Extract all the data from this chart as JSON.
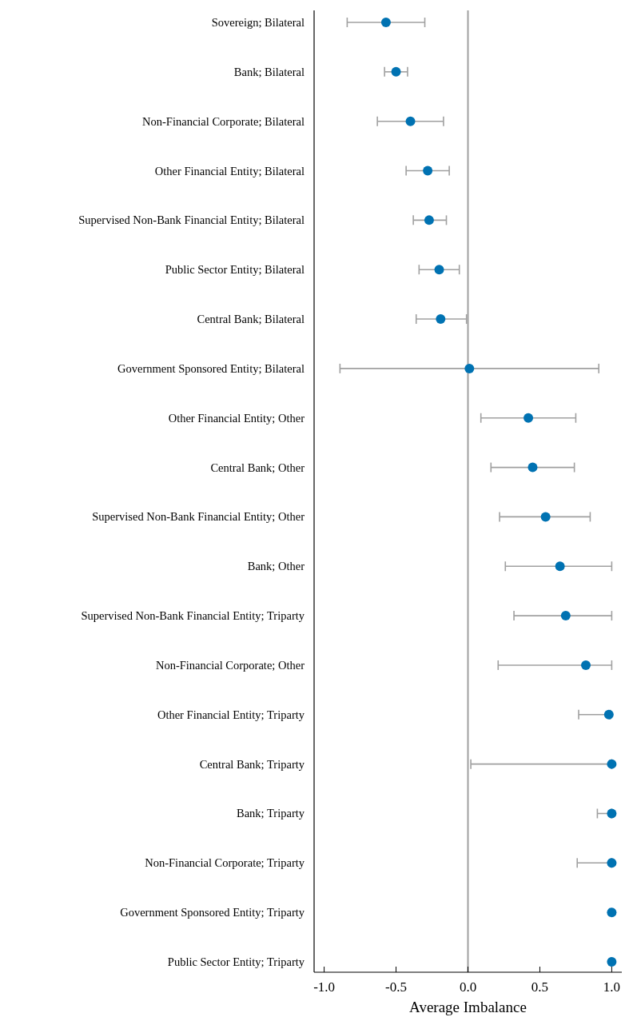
{
  "chart_data": {
    "type": "scatter",
    "orientation": "horizontal",
    "xlabel": "Average Imbalance",
    "categories": [
      "Sovereign; Bilateral",
      "Bank; Bilateral",
      "Non-Financial Corporate; Bilateral",
      "Other Financial Entity; Bilateral",
      "Supervised Non-Bank Financial Entity; Bilateral",
      "Public Sector Entity; Bilateral",
      "Central Bank; Bilateral",
      "Government Sponsored Entity; Bilateral",
      "Other Financial Entity; Other",
      "Central Bank; Other",
      "Supervised Non-Bank Financial Entity; Other",
      "Bank; Other",
      "Supervised Non-Bank Financial Entity; Triparty",
      "Non-Financial Corporate; Other",
      "Other Financial Entity; Triparty",
      "Central Bank; Triparty",
      "Bank; Triparty",
      "Non-Financial Corporate; Triparty",
      "Government Sponsored Entity; Triparty",
      "Public Sector Entity; Triparty"
    ],
    "values": [
      -0.57,
      -0.5,
      -0.4,
      -0.28,
      -0.27,
      -0.2,
      -0.19,
      0.01,
      0.42,
      0.45,
      0.54,
      0.64,
      0.68,
      0.82,
      0.98,
      1.0,
      1.0,
      1.0,
      1.0,
      1.0
    ],
    "errors": [
      [
        -0.84,
        -0.3
      ],
      [
        -0.58,
        -0.42
      ],
      [
        -0.63,
        -0.17
      ],
      [
        -0.43,
        -0.13
      ],
      [
        -0.38,
        -0.15
      ],
      [
        -0.34,
        -0.06
      ],
      [
        -0.36,
        -0.01
      ],
      [
        -0.89,
        0.91
      ],
      [
        0.09,
        0.75
      ],
      [
        0.16,
        0.74
      ],
      [
        0.22,
        0.85
      ],
      [
        0.26,
        1.0
      ],
      [
        0.32,
        1.0
      ],
      [
        0.21,
        1.0
      ],
      [
        0.77,
        0.99
      ],
      [
        0.02,
        1.0
      ],
      [
        0.9,
        1.0
      ],
      [
        0.76,
        1.0
      ],
      null,
      null
    ],
    "color": "#0072b2",
    "xlim": [
      -1.07,
      1.07
    ],
    "xticks": [
      {
        "value": -1,
        "label": "-1.0"
      },
      {
        "value": -0.5,
        "label": "-0.5"
      },
      {
        "value": 0,
        "label": "0.0"
      },
      {
        "value": 0.5,
        "label": "0.5"
      },
      {
        "value": 1,
        "label": "1.0"
      }
    ],
    "ref_lines": [
      {
        "axis": "x",
        "value": 0,
        "color": "#a0a0a0"
      }
    ],
    "marker": "circle",
    "grid": false
  }
}
